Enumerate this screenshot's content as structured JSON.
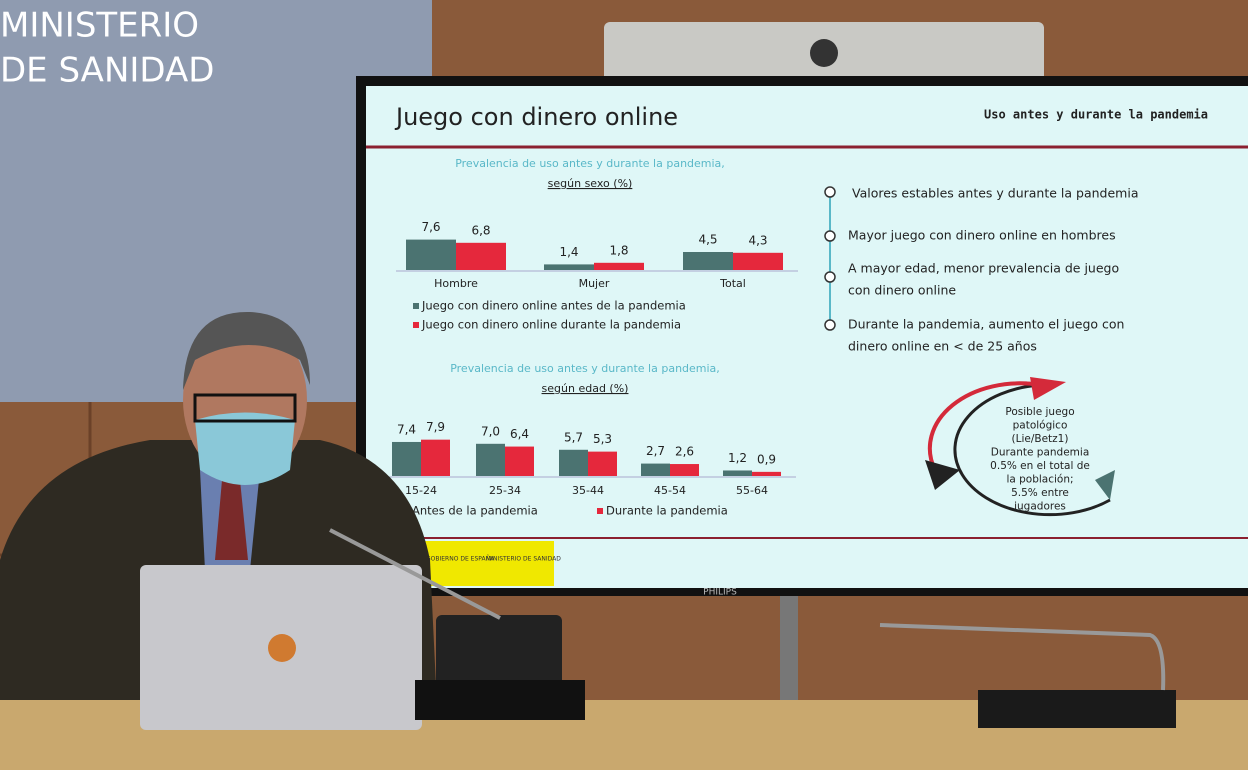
{
  "wall": {
    "lines": [
      "MINISTERIO",
      "DE SANIDAD"
    ]
  },
  "screen_brand": "PHILIPS",
  "slide": {
    "title": "Juego con dinero online",
    "subtitle": "Uso antes y durante la pandemia",
    "bullets": [
      {
        "lines": [
          "Valores estables antes y durante la pandemia"
        ]
      },
      {
        "lines": [
          "Mayor juego con dinero online en hombres"
        ]
      },
      {
        "lines": [
          "A mayor edad, menor prevalencia de juego",
          "con dinero online"
        ]
      },
      {
        "lines": [
          "Durante la pandemia, aumento el juego con",
          "dinero online en < de 25 años"
        ]
      }
    ],
    "cycle_text": [
      "Posible juego",
      "patológico",
      "(Lie/Betz1)",
      "Durante pandemia",
      "0.5% en el total de",
      "la población;",
      "5.5% entre",
      "jugadores"
    ],
    "footer_logos": [
      "GOBIERNO DE ESPAÑA",
      "MINISTERIO DE SANIDAD"
    ]
  },
  "chart_data": [
    {
      "type": "bar",
      "title": "Prevalencia de uso antes y durante la pandemia,",
      "subtitle": "según sexo (%)",
      "categories": [
        "Hombre",
        "Mujer",
        "Total"
      ],
      "series": [
        {
          "name": "Juego con dinero online antes de la pandemia",
          "color": "#4b7371",
          "values": [
            7.6,
            1.4,
            4.5
          ],
          "value_labels": [
            "7,6",
            "1,4",
            "4,5"
          ]
        },
        {
          "name": "Juego con dinero online durante la pandemia",
          "color": "#e5283c",
          "values": [
            6.8,
            1.8,
            4.3
          ],
          "value_labels": [
            "6,8",
            "1,8",
            "4,3"
          ]
        }
      ]
    },
    {
      "type": "bar",
      "title": "Prevalencia de uso antes y durante la pandemia,",
      "subtitle": "según edad (%)",
      "categories": [
        "15-24",
        "25-34",
        "35-44",
        "45-54",
        "55-64"
      ],
      "series": [
        {
          "name": "Antes de la pandemia",
          "color": "#4b7371",
          "values": [
            7.4,
            7.0,
            5.7,
            2.7,
            1.2
          ],
          "value_labels": [
            "7,4",
            "7,0",
            "5,7",
            "2,7",
            "1,2"
          ]
        },
        {
          "name": "Durante la pandemia",
          "color": "#e5283c",
          "values": [
            7.9,
            6.4,
            5.3,
            2.6,
            0.9
          ],
          "value_labels": [
            "7,9",
            "6,4",
            "5,3",
            "2,6",
            "0,9"
          ]
        }
      ]
    }
  ]
}
